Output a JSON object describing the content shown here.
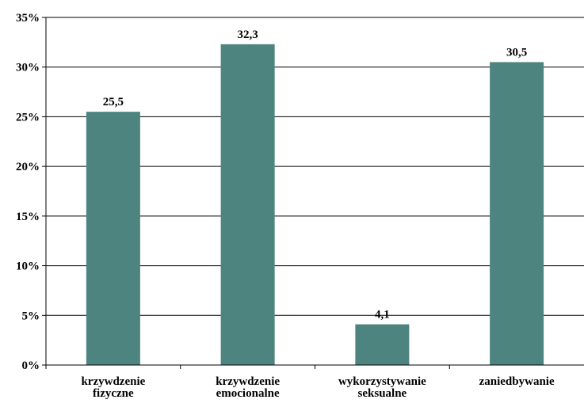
{
  "chart_data": {
    "type": "bar",
    "title": "",
    "xlabel": "",
    "ylabel": "",
    "categories": [
      [
        "krzywdzenie",
        "fizyczne"
      ],
      [
        "krzywdzenie",
        "emocionalne"
      ],
      [
        "wykorzystywanie",
        "seksualne"
      ],
      [
        "zaniedbywanie"
      ]
    ],
    "values": [
      25.5,
      32.3,
      4.1,
      30.5
    ],
    "value_labels": [
      "25,5",
      "32,3",
      "4,1",
      "30,5"
    ],
    "ylim": [
      0,
      35
    ],
    "yticks": [
      0,
      5,
      10,
      15,
      20,
      25,
      30,
      35
    ],
    "ytick_labels": [
      "0%",
      "5%",
      "10%",
      "15%",
      "20%",
      "25%",
      "30%",
      "35%"
    ],
    "grid": "horizontal",
    "legend": "none",
    "colors": {
      "bar": "#4e8480",
      "grid": "#000000",
      "axis": "#000000"
    }
  }
}
